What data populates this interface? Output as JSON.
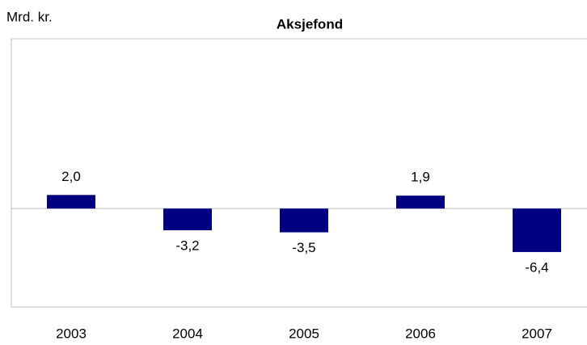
{
  "chart_data": {
    "type": "bar",
    "title": "Aksjefond",
    "y_label": "Mrd. kr.",
    "categories": [
      "2003",
      "2004",
      "2005",
      "2006",
      "2007"
    ],
    "values": [
      2.0,
      -3.2,
      -3.5,
      1.9,
      -6.4
    ],
    "value_labels": [
      "2,0",
      "-3,2",
      "-3,5",
      "1,9",
      "-6,4"
    ],
    "color": "#000080",
    "ylim": [
      -14.5,
      25
    ]
  }
}
